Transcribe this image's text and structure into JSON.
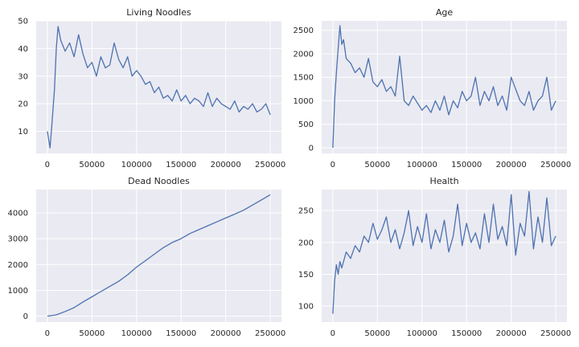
{
  "colors": {
    "line": "#4c72b0",
    "panel": "#eaeaf2",
    "grid": "#ffffff"
  },
  "chart_data": [
    {
      "type": "line",
      "title": "Living Noodles",
      "xlim": [
        -12500,
        262500
      ],
      "ylim": [
        2,
        50
      ],
      "xticks": [
        0,
        50000,
        100000,
        150000,
        200000,
        250000
      ],
      "yticks": [
        10,
        20,
        30,
        40,
        50
      ],
      "series": [
        {
          "x": [
            0,
            3000,
            5000,
            8000,
            10000,
            12000,
            15000,
            20000,
            25000,
            30000,
            35000,
            40000,
            45000,
            50000,
            55000,
            60000,
            65000,
            70000,
            75000,
            80000,
            85000,
            90000,
            95000,
            100000,
            105000,
            110000,
            115000,
            120000,
            125000,
            130000,
            135000,
            140000,
            145000,
            150000,
            155000,
            160000,
            165000,
            170000,
            175000,
            180000,
            185000,
            190000,
            195000,
            200000,
            205000,
            210000,
            215000,
            220000,
            225000,
            230000,
            235000,
            240000,
            245000,
            250000
          ],
          "y": [
            10,
            4,
            12,
            25,
            40,
            48,
            43,
            39,
            42,
            37,
            45,
            38,
            33,
            35,
            30,
            37,
            33,
            34,
            42,
            36,
            33,
            37,
            30,
            32,
            30,
            27,
            28,
            24,
            26,
            22,
            23,
            21,
            25,
            21,
            23,
            20,
            22,
            21,
            19,
            24,
            19,
            22,
            20,
            19,
            18,
            21,
            17,
            19,
            18,
            20,
            17,
            18,
            20,
            16
          ]
        }
      ]
    },
    {
      "type": "line",
      "title": "Age",
      "xlim": [
        -12500,
        262500
      ],
      "ylim": [
        -120,
        2700
      ],
      "xticks": [
        0,
        50000,
        100000,
        150000,
        200000,
        250000
      ],
      "yticks": [
        0,
        500,
        1000,
        1500,
        2000,
        2500
      ],
      "series": [
        {
          "x": [
            0,
            2000,
            4000,
            6000,
            8000,
            10000,
            12000,
            15000,
            20000,
            25000,
            30000,
            35000,
            40000,
            45000,
            50000,
            55000,
            60000,
            65000,
            70000,
            75000,
            80000,
            85000,
            90000,
            95000,
            100000,
            105000,
            110000,
            115000,
            120000,
            125000,
            130000,
            135000,
            140000,
            145000,
            150000,
            155000,
            160000,
            165000,
            170000,
            175000,
            180000,
            185000,
            190000,
            195000,
            200000,
            205000,
            210000,
            215000,
            220000,
            225000,
            230000,
            235000,
            240000,
            245000,
            250000
          ],
          "y": [
            0,
            1000,
            1600,
            2100,
            2600,
            2200,
            2300,
            1900,
            1800,
            1600,
            1700,
            1500,
            1900,
            1400,
            1300,
            1450,
            1200,
            1300,
            1100,
            1950,
            1000,
            900,
            1100,
            950,
            800,
            900,
            750,
            1000,
            800,
            1100,
            700,
            1000,
            850,
            1200,
            1000,
            1100,
            1500,
            900,
            1200,
            1000,
            1300,
            900,
            1100,
            800,
            1500,
            1250,
            1000,
            900,
            1200,
            800,
            1000,
            1100,
            1500,
            800,
            1000
          ]
        }
      ]
    },
    {
      "type": "line",
      "title": "Dead Noodles",
      "xlim": [
        -12500,
        262500
      ],
      "ylim": [
        -230,
        4900
      ],
      "xticks": [
        0,
        50000,
        100000,
        150000,
        200000,
        250000
      ],
      "yticks": [
        0,
        1000,
        2000,
        3000,
        4000
      ],
      "series": [
        {
          "x": [
            0,
            10000,
            20000,
            30000,
            40000,
            50000,
            60000,
            70000,
            80000,
            90000,
            100000,
            110000,
            120000,
            130000,
            140000,
            150000,
            160000,
            170000,
            180000,
            190000,
            200000,
            210000,
            220000,
            230000,
            240000,
            250000
          ],
          "y": [
            0,
            50,
            180,
            330,
            550,
            750,
            950,
            1150,
            1350,
            1600,
            1900,
            2150,
            2400,
            2650,
            2850,
            3000,
            3200,
            3350,
            3500,
            3650,
            3800,
            3950,
            4100,
            4300,
            4500,
            4700
          ]
        }
      ]
    },
    {
      "type": "line",
      "title": "Health",
      "xlim": [
        -12500,
        262500
      ],
      "ylim": [
        75,
        283
      ],
      "xticks": [
        0,
        50000,
        100000,
        150000,
        200000,
        250000
      ],
      "yticks": [
        100,
        150,
        200,
        250
      ],
      "series": [
        {
          "x": [
            0,
            2000,
            4000,
            6000,
            8000,
            10000,
            15000,
            20000,
            25000,
            30000,
            35000,
            40000,
            45000,
            50000,
            55000,
            60000,
            65000,
            70000,
            75000,
            80000,
            85000,
            90000,
            95000,
            100000,
            105000,
            110000,
            115000,
            120000,
            125000,
            130000,
            135000,
            140000,
            145000,
            150000,
            155000,
            160000,
            165000,
            170000,
            175000,
            180000,
            185000,
            190000,
            195000,
            200000,
            205000,
            210000,
            215000,
            220000,
            225000,
            230000,
            235000,
            240000,
            245000,
            250000
          ],
          "y": [
            88,
            140,
            165,
            150,
            170,
            160,
            185,
            175,
            195,
            185,
            210,
            200,
            230,
            205,
            220,
            240,
            200,
            220,
            190,
            215,
            250,
            195,
            225,
            200,
            245,
            190,
            220,
            200,
            235,
            185,
            210,
            260,
            195,
            230,
            200,
            215,
            190,
            245,
            200,
            260,
            205,
            225,
            195,
            275,
            180,
            230,
            210,
            280,
            190,
            240,
            200,
            270,
            195,
            210
          ]
        }
      ]
    }
  ]
}
